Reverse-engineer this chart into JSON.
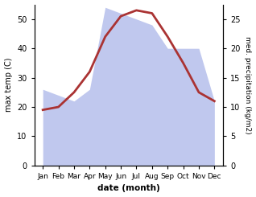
{
  "months": [
    "Jan",
    "Feb",
    "Mar",
    "Apr",
    "May",
    "Jun",
    "Jul",
    "Aug",
    "Sep",
    "Oct",
    "Nov",
    "Dec"
  ],
  "temperature": [
    19,
    20,
    25,
    32,
    44,
    51,
    53,
    52,
    44,
    35,
    25,
    22
  ],
  "precipitation": [
    13,
    12,
    11,
    13,
    27,
    26,
    25,
    24,
    20,
    20,
    20,
    11
  ],
  "temp_color": "#aa3333",
  "precip_fill_color": "#c0c8ee",
  "temp_ylim": [
    0,
    55
  ],
  "precip_ylim": [
    0,
    27.5
  ],
  "temp_yticks": [
    0,
    10,
    20,
    30,
    40,
    50
  ],
  "precip_yticks": [
    0,
    5,
    10,
    15,
    20,
    25
  ],
  "ylabel_left": "max temp (C)",
  "ylabel_right": "med. precipitation (kg/m2)",
  "xlabel": "date (month)",
  "background_color": "#ffffff"
}
